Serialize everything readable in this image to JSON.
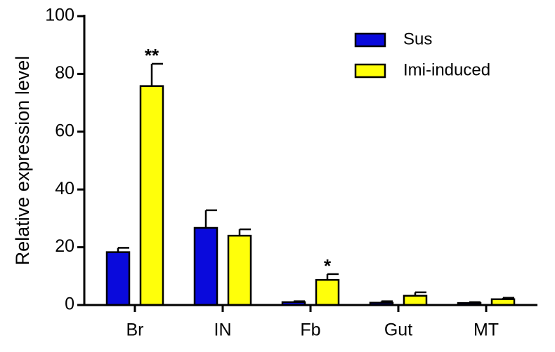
{
  "chart_data": {
    "type": "bar",
    "y_label": "Relative expression level",
    "categories": [
      "Br",
      "IN",
      "Fb",
      "Gut",
      "MT"
    ],
    "series": [
      {
        "name": "Sus",
        "color": "#0a0adc",
        "values": [
          18.3,
          26.7,
          1.0,
          0.8,
          0.7
        ],
        "errors": [
          1.5,
          6.1,
          0.3,
          0.5,
          0.3
        ],
        "annotations": [
          null,
          null,
          null,
          null,
          null
        ]
      },
      {
        "name": "Imi-induced",
        "color": "#ffff0a",
        "values": [
          75.8,
          24.0,
          8.7,
          3.2,
          2.0
        ],
        "errors": [
          7.7,
          2.2,
          2.0,
          1.2,
          0.5
        ],
        "annotations": [
          "**",
          null,
          "*",
          null,
          null
        ]
      }
    ],
    "ylim": [
      0,
      100
    ],
    "yticks": [
      0,
      20,
      40,
      60,
      80,
      100
    ],
    "grid": false,
    "legend": "top-right"
  }
}
